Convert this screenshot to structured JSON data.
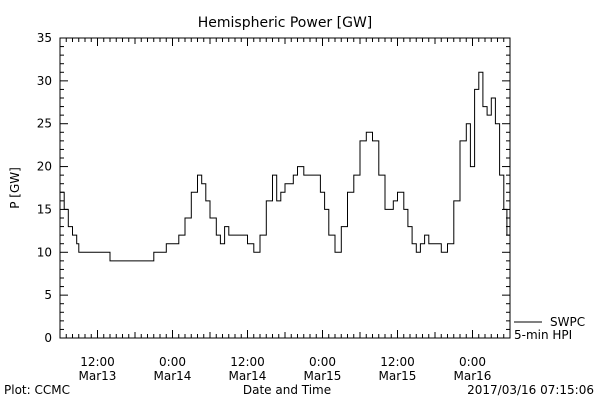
{
  "chart_data": {
    "type": "line",
    "title": "Hemispheric Power [GW]",
    "xlabel": "Date and Time",
    "ylabel": "P [GW]",
    "ylim": [
      0,
      35
    ],
    "yticks": [
      0,
      5,
      10,
      15,
      20,
      25,
      30,
      35
    ],
    "xlim": [
      "2017-03-13T06:00",
      "2017-03-16T06:00"
    ],
    "xticks": [
      {
        "time": "2017-03-13T12:00",
        "line1": "12:00",
        "line2": "Mar13"
      },
      {
        "time": "2017-03-14T00:00",
        "line1": "0:00",
        "line2": "Mar14"
      },
      {
        "time": "2017-03-14T12:00",
        "line1": "12:00",
        "line2": "Mar14"
      },
      {
        "time": "2017-03-15T00:00",
        "line1": "0:00",
        "line2": "Mar15"
      },
      {
        "time": "2017-03-15T12:00",
        "line1": "12:00",
        "line2": "Mar15"
      },
      {
        "time": "2017-03-16T00:00",
        "line1": "0:00",
        "line2": "Mar16"
      }
    ],
    "grid": false,
    "legend": [
      "SWPC",
      "5-min HPI"
    ],
    "series": [
      {
        "name": "SWPC",
        "x": [
          "2017-03-13T06:00",
          "2017-03-13T06:40",
          "2017-03-13T07:20",
          "2017-03-13T08:00",
          "2017-03-13T08:40",
          "2017-03-13T09:00",
          "2017-03-13T10:00",
          "2017-03-13T11:00",
          "2017-03-13T12:00",
          "2017-03-13T13:00",
          "2017-03-13T14:00",
          "2017-03-13T14:40",
          "2017-03-13T15:20",
          "2017-03-13T16:00",
          "2017-03-13T17:00",
          "2017-03-13T18:00",
          "2017-03-13T19:00",
          "2017-03-13T20:00",
          "2017-03-13T21:00",
          "2017-03-13T22:00",
          "2017-03-13T23:00",
          "2017-03-14T00:00",
          "2017-03-14T01:00",
          "2017-03-14T02:00",
          "2017-03-14T03:00",
          "2017-03-14T04:00",
          "2017-03-14T04:40",
          "2017-03-14T05:20",
          "2017-03-14T06:00",
          "2017-03-14T07:00",
          "2017-03-14T07:40",
          "2017-03-14T08:20",
          "2017-03-14T09:00",
          "2017-03-14T09:40",
          "2017-03-14T10:00",
          "2017-03-14T10:20",
          "2017-03-14T11:00",
          "2017-03-14T12:00",
          "2017-03-14T13:00",
          "2017-03-14T14:00",
          "2017-03-14T15:00",
          "2017-03-14T16:00",
          "2017-03-14T16:40",
          "2017-03-14T17:20",
          "2017-03-14T18:00",
          "2017-03-14T18:40",
          "2017-03-14T19:20",
          "2017-03-14T20:00",
          "2017-03-14T21:00",
          "2017-03-14T21:40",
          "2017-03-14T22:20",
          "2017-03-14T23:00",
          "2017-03-14T23:40",
          "2017-03-15T00:20",
          "2017-03-15T01:00",
          "2017-03-15T02:00",
          "2017-03-15T03:00",
          "2017-03-15T04:00",
          "2017-03-15T05:00",
          "2017-03-15T06:00",
          "2017-03-15T07:00",
          "2017-03-15T08:00",
          "2017-03-15T09:00",
          "2017-03-15T10:00",
          "2017-03-15T10:40",
          "2017-03-15T11:20",
          "2017-03-15T12:00",
          "2017-03-15T13:00",
          "2017-03-15T13:40",
          "2017-03-15T14:20",
          "2017-03-15T15:00",
          "2017-03-15T15:40",
          "2017-03-15T16:20",
          "2017-03-15T17:00",
          "2017-03-15T18:00",
          "2017-03-15T19:00",
          "2017-03-15T20:00",
          "2017-03-15T21:00",
          "2017-03-15T22:00",
          "2017-03-15T23:00",
          "2017-03-15T23:40",
          "2017-03-16T00:20",
          "2017-03-16T01:00",
          "2017-03-16T01:40",
          "2017-03-16T02:20",
          "2017-03-16T03:00",
          "2017-03-16T03:40",
          "2017-03-16T04:20",
          "2017-03-16T05:00",
          "2017-03-16T05:30",
          "2017-03-16T06:00"
        ],
        "y": [
          17,
          15,
          13,
          12,
          11,
          10,
          10,
          10,
          10,
          10,
          9,
          9,
          9,
          9,
          9,
          9,
          9,
          9,
          10,
          10,
          11,
          11,
          12,
          14,
          17,
          19,
          18,
          16,
          14,
          12,
          11,
          13,
          12,
          12,
          12,
          12,
          12,
          11,
          10,
          12,
          16,
          19,
          16,
          17,
          18,
          18,
          19,
          20,
          19,
          19,
          19,
          19,
          17,
          15,
          12,
          10,
          13,
          17,
          19,
          23,
          24,
          23,
          19,
          15,
          15,
          16,
          17,
          15,
          13,
          11,
          10,
          11,
          12,
          11,
          11,
          10,
          11,
          16,
          23,
          25,
          20,
          29,
          31,
          27,
          26,
          28,
          25,
          19,
          15,
          12,
          10
        ]
      }
    ]
  },
  "footer": {
    "left": "Plot: CCMC",
    "right": "2017/03/16 07:15:06"
  },
  "colors": {
    "line": "#000000",
    "axis": "#000000",
    "background": "#ffffff"
  }
}
